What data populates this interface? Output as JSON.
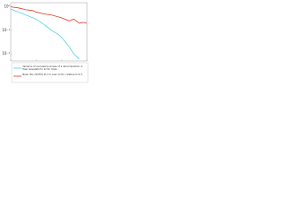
{
  "chart_data": {
    "type": "line",
    "x": [
      1,
      2,
      4,
      7,
      10,
      20,
      40,
      70,
      100,
      200,
      300,
      500,
      700,
      1000
    ],
    "series": [
      {
        "name": "Variance of successive slopes of a decomposition in Haar wavelets for arctic mass",
        "color": "#5bd0e6",
        "values": [
          0.8,
          0.6,
          0.45,
          0.35,
          0.3,
          0.18,
          0.1,
          0.07,
          0.05,
          0.02,
          0.01,
          0.006,
          null,
          null
        ]
      },
      {
        "name": "Mean flux (SCFM) at 2 m over Arctic, relative to 0.5",
        "color": "#e23a2a",
        "values": [
          1.0,
          0.9,
          0.75,
          0.7,
          0.6,
          0.5,
          0.45,
          0.38,
          0.34,
          0.25,
          0.3,
          0.2,
          0.22,
          0.2
        ]
      }
    ],
    "xscale": "log",
    "yscale": "log",
    "xlim": [
      1,
      1000
    ],
    "xticks": [
      {
        "value": 1,
        "label": "10⁰"
      },
      {
        "value": 10,
        "label": "10¹"
      },
      {
        "value": 100,
        "label": "10²"
      },
      {
        "value": 1000,
        "label": "10³"
      }
    ],
    "ylim": [
      0.005,
      1.5
    ],
    "yticks": [
      {
        "value": 1,
        "label": "10⁰"
      },
      {
        "value": 0.1,
        "label": "10⁻¹"
      },
      {
        "value": 0.01,
        "label": "10⁻²"
      }
    ],
    "legend": "bottom"
  }
}
